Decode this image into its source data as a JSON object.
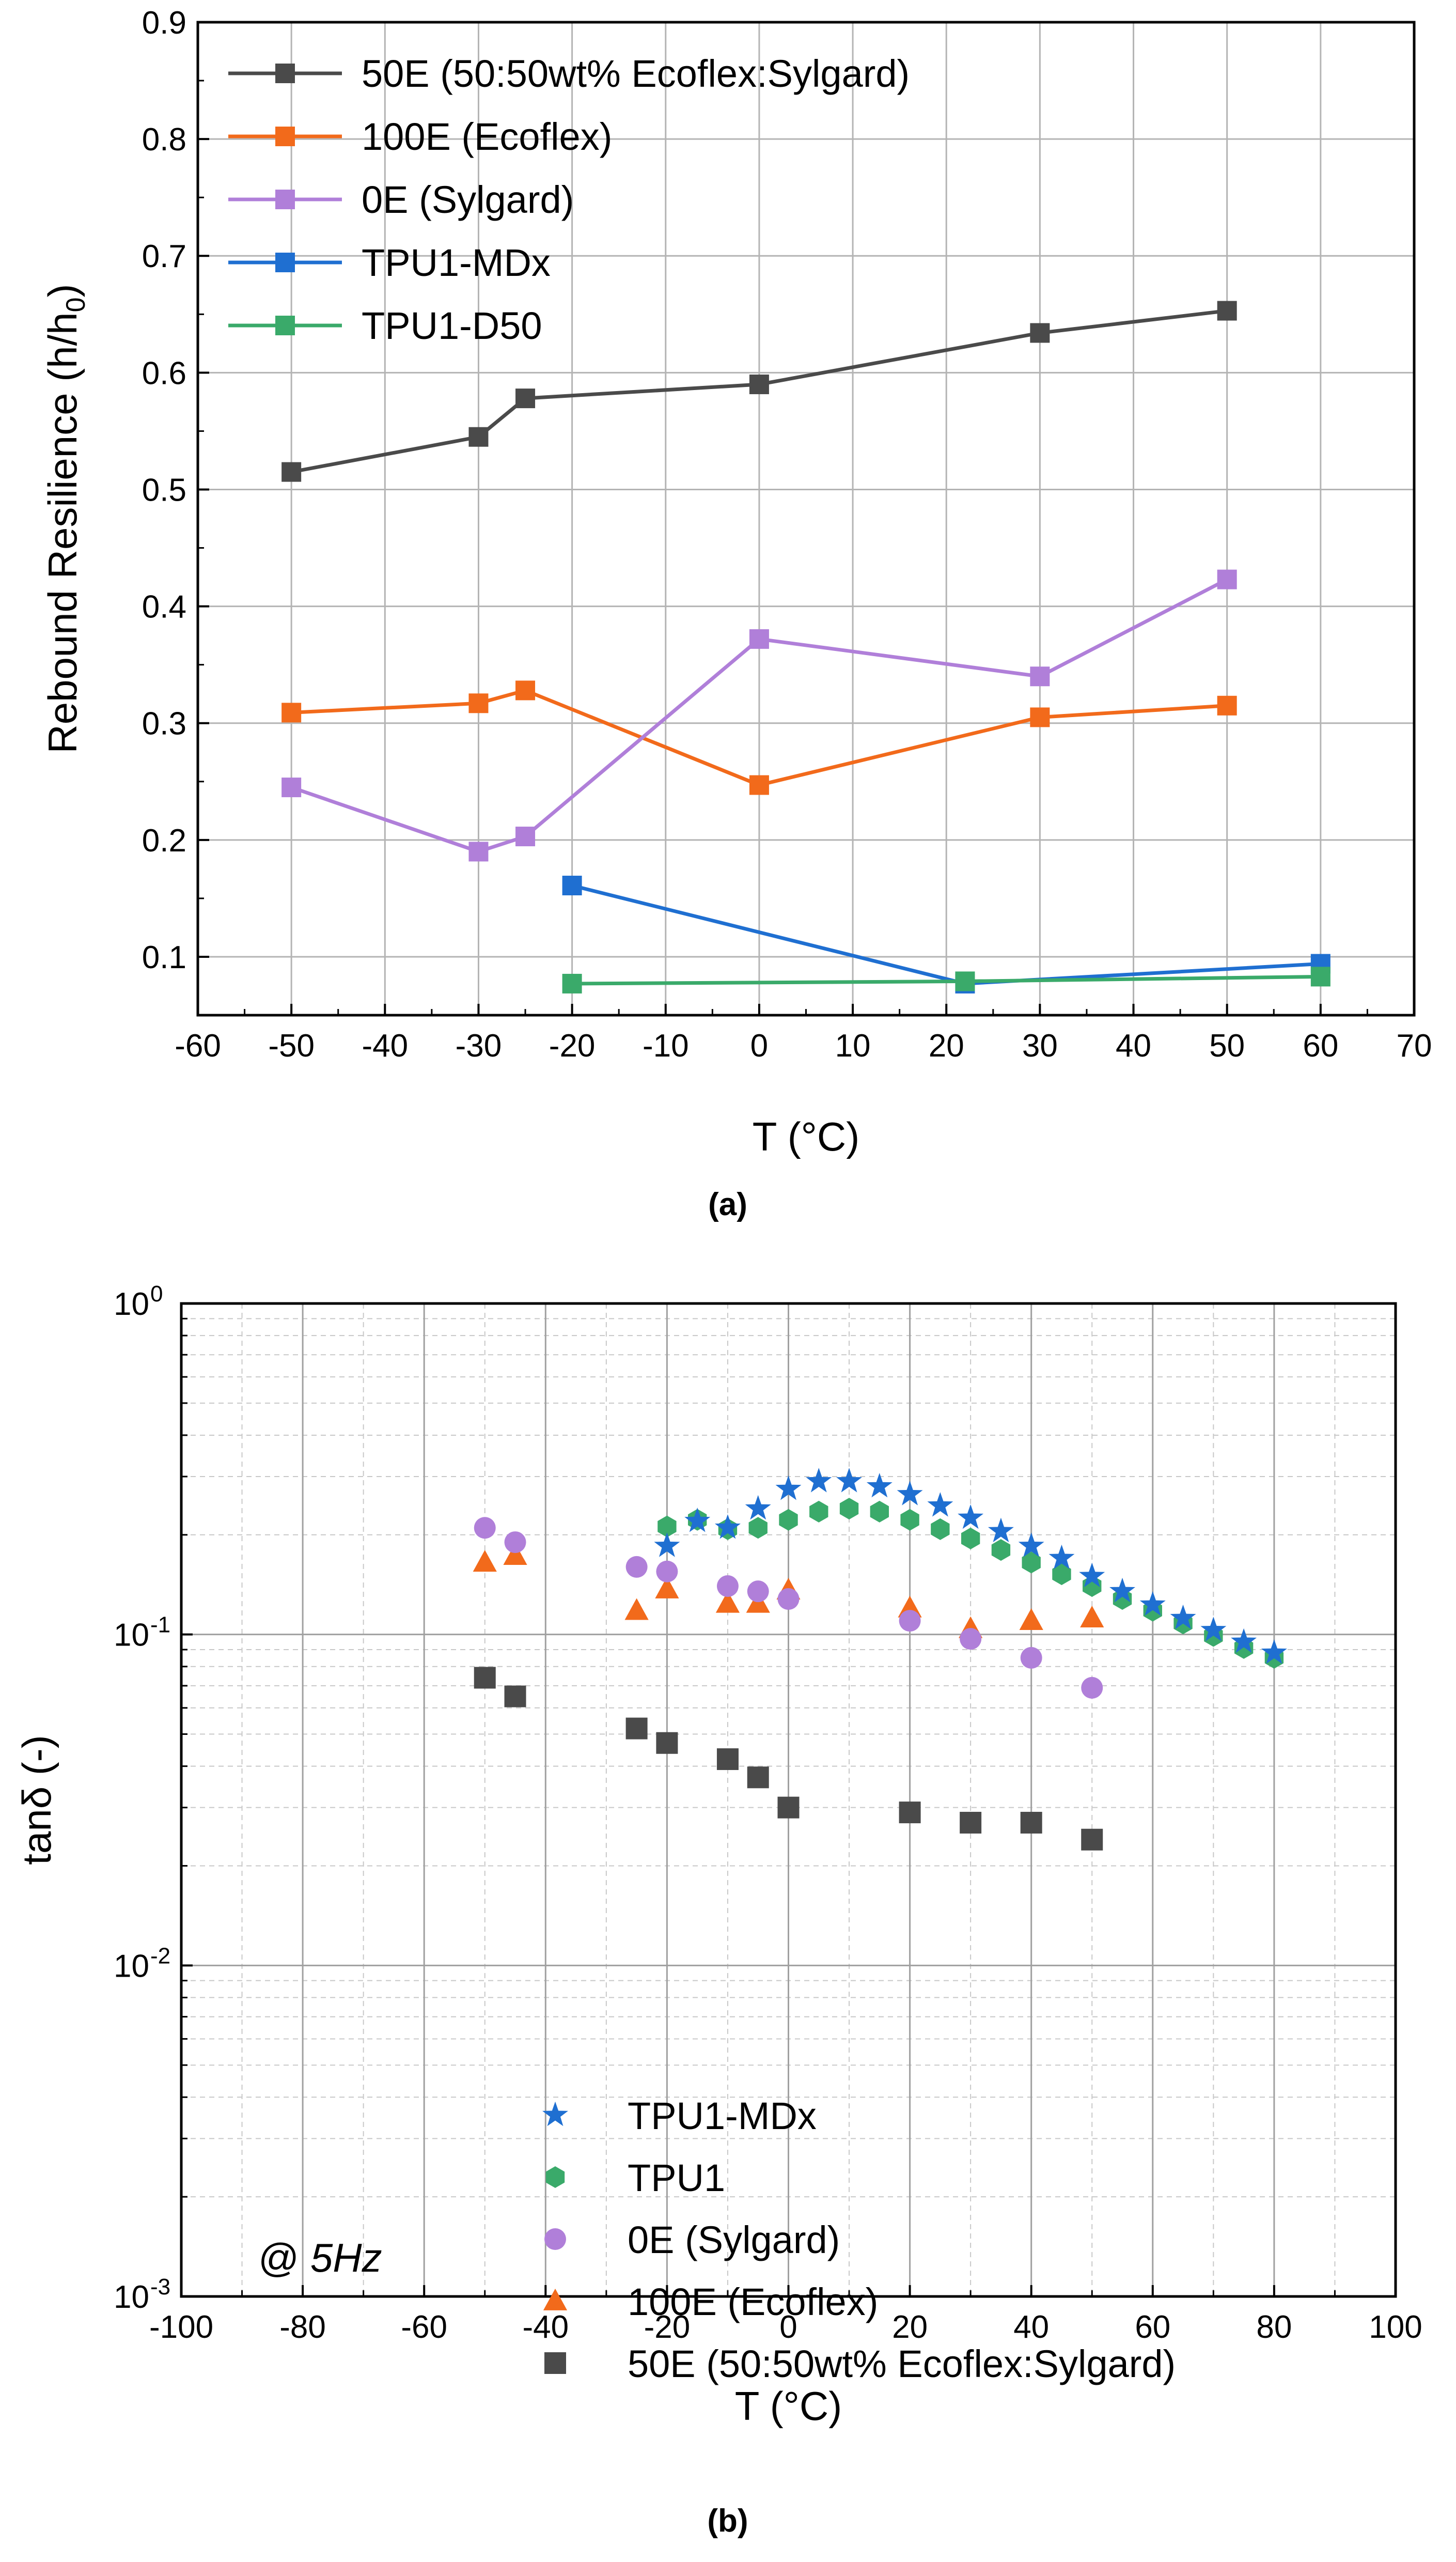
{
  "panels": [
    {
      "label": "(a)"
    },
    {
      "label": "(b)"
    }
  ],
  "chart_data": [
    {
      "type": "line",
      "xlabel": "T (°C)",
      "ylabel": "Rebound Resilience (h/h",
      "ylabel_sub": "0",
      "ylabel_end": ")",
      "xlim": [
        -60,
        70
      ],
      "ylim": [
        0.05,
        0.9
      ],
      "xticks": [
        -60,
        -50,
        -40,
        -30,
        -20,
        -10,
        0,
        10,
        20,
        30,
        40,
        50,
        60,
        70
      ],
      "yticks": [
        0.1,
        0.2,
        0.3,
        0.4,
        0.5,
        0.6,
        0.7,
        0.8,
        0.9
      ],
      "grid": true,
      "legend_position": "top-left",
      "series": [
        {
          "name": "50E (50:50wt% Ecoflex:Sylgard)",
          "color": "#4a4a4a",
          "marker": "square",
          "x": [
            -50,
            -30,
            -25,
            0,
            30,
            50
          ],
          "y": [
            0.515,
            0.545,
            0.578,
            0.59,
            0.634,
            0.653
          ]
        },
        {
          "name": "100E (Ecoflex)",
          "color": "#f26a1b",
          "marker": "square",
          "x": [
            -50,
            -30,
            -25,
            0,
            30,
            50
          ],
          "y": [
            0.309,
            0.317,
            0.328,
            0.247,
            0.305,
            0.315
          ]
        },
        {
          "name": "0E (Sylgard)",
          "color": "#b07fd9",
          "marker": "square",
          "x": [
            -50,
            -30,
            -25,
            0,
            30,
            50
          ],
          "y": [
            0.245,
            0.19,
            0.203,
            0.372,
            0.34,
            0.423
          ]
        },
        {
          "name": "TPU1-MDx",
          "color": "#1f6fd1",
          "marker": "square",
          "x": [
            -20,
            22,
            60
          ],
          "y": [
            0.161,
            0.077,
            0.094
          ]
        },
        {
          "name": "TPU1-D50",
          "color": "#3aaa6a",
          "marker": "square",
          "x": [
            -20,
            22,
            60
          ],
          "y": [
            0.077,
            0.079,
            0.083
          ]
        }
      ]
    },
    {
      "type": "scatter",
      "xlabel": "T (°C)",
      "ylabel": "tanδ (-)",
      "yscale": "log",
      "xlim": [
        -100,
        100
      ],
      "ylim": [
        0.001,
        1
      ],
      "xticks": [
        -100,
        -80,
        -60,
        -40,
        -20,
        0,
        20,
        40,
        60,
        80,
        100
      ],
      "yticks": [
        {
          "value": 1,
          "base": "10",
          "exp": "0"
        },
        {
          "value": 0.1,
          "base": "10",
          "exp": "-1"
        },
        {
          "value": 0.01,
          "base": "10",
          "exp": "-2"
        },
        {
          "value": 0.001,
          "base": "10",
          "exp": "-3"
        }
      ],
      "grid": true,
      "annotation": {
        "prefix": "@ ",
        "text": "5Hz"
      },
      "legend_position": "bottom-center",
      "series": [
        {
          "name": "TPU1-MDx",
          "color": "#1f6fd1",
          "marker": "star",
          "x": [
            -20,
            -15,
            -10,
            -5,
            0,
            5,
            10,
            15,
            20,
            25,
            30,
            35,
            40,
            45,
            50,
            55,
            60,
            65,
            70,
            75,
            80
          ],
          "y": [
            0.185,
            0.22,
            0.21,
            0.24,
            0.275,
            0.29,
            0.29,
            0.28,
            0.265,
            0.245,
            0.225,
            0.205,
            0.185,
            0.17,
            0.15,
            0.135,
            0.123,
            0.112,
            0.103,
            0.095,
            0.088
          ]
        },
        {
          "name": "TPU1",
          "color": "#3aaa6a",
          "marker": "hexagon",
          "x": [
            -20,
            -15,
            -10,
            -5,
            0,
            5,
            10,
            15,
            20,
            25,
            30,
            35,
            40,
            45,
            50,
            55,
            60,
            65,
            70,
            75,
            80
          ],
          "y": [
            0.212,
            0.222,
            0.208,
            0.21,
            0.222,
            0.235,
            0.24,
            0.235,
            0.222,
            0.208,
            0.195,
            0.18,
            0.165,
            0.152,
            0.14,
            0.128,
            0.118,
            0.108,
            0.099,
            0.091,
            0.085
          ]
        },
        {
          "name": "0E (Sylgard)",
          "color": "#b07fd9",
          "marker": "circle",
          "x": [
            -50,
            -45,
            -25,
            -20,
            -10,
            -5,
            0,
            20,
            30,
            40,
            50
          ],
          "y": [
            0.21,
            0.19,
            0.16,
            0.155,
            0.14,
            0.135,
            0.128,
            0.11,
            0.097,
            0.085,
            0.069
          ]
        },
        {
          "name": "100E (Ecoflex)",
          "color": "#f26a1b",
          "marker": "triangle",
          "x": [
            -50,
            -45,
            -25,
            -20,
            -10,
            -5,
            0,
            20,
            30,
            40,
            50
          ],
          "y": [
            0.165,
            0.173,
            0.118,
            0.137,
            0.124,
            0.124,
            0.136,
            0.12,
            0.104,
            0.11,
            0.112
          ]
        },
        {
          "name": "50E (50:50wt% Ecoflex:Sylgard)",
          "color": "#4a4a4a",
          "marker": "square",
          "x": [
            -50,
            -45,
            -25,
            -20,
            -10,
            -5,
            0,
            20,
            30,
            40,
            50
          ],
          "y": [
            0.074,
            0.065,
            0.052,
            0.047,
            0.042,
            0.037,
            0.03,
            0.029,
            0.027,
            0.027,
            0.024
          ]
        }
      ]
    }
  ]
}
